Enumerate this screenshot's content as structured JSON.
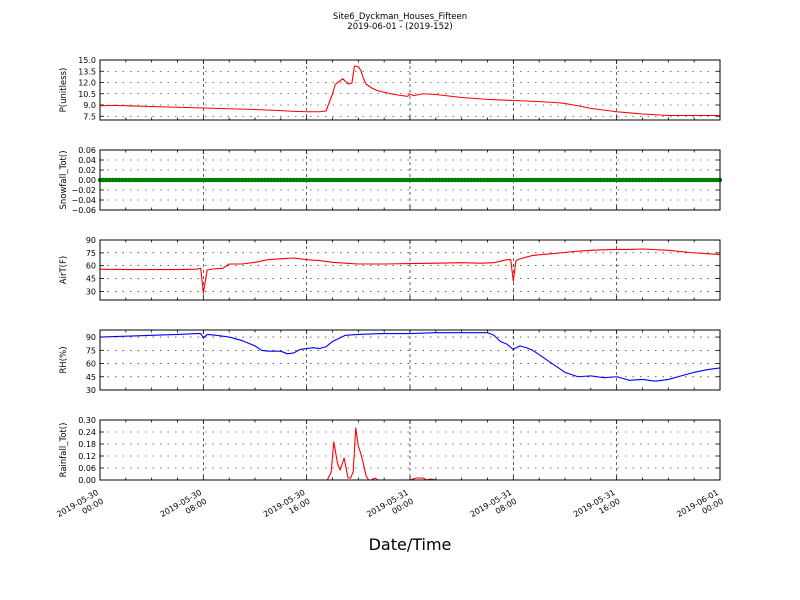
{
  "figure": {
    "title_line1": "Site6_Dyckman_Houses_Fifteen",
    "title_line2": "2019-06-01 - (2019-152)",
    "xlabel": "Date/Time",
    "x_tick_labels": [
      [
        "2019-05-30",
        "00:00"
      ],
      [
        "2019-05-30",
        "08:00"
      ],
      [
        "2019-05-30",
        "16:00"
      ],
      [
        "2019-05-31",
        "00:00"
      ],
      [
        "2019-05-31",
        "08:00"
      ],
      [
        "2019-05-31",
        "16:00"
      ],
      [
        "2019-06-01",
        "00:00"
      ]
    ]
  },
  "chart_data": [
    {
      "type": "line",
      "ylabel": "P(unitless)",
      "ylim": [
        7.0,
        15.0
      ],
      "yticks": [
        "7.5",
        "9.0",
        "10.5",
        "12.0",
        "13.5",
        "15.0"
      ],
      "ytick_values": [
        7.5,
        9.0,
        10.5,
        12.0,
        13.5,
        15.0
      ],
      "xlim_hours": [
        0,
        48
      ],
      "grid": true,
      "color": "#ff0000",
      "series": [
        {
          "x_hours": [
            0,
            1,
            2,
            4,
            6,
            8,
            10,
            12,
            14,
            15,
            16,
            17,
            17.5,
            18,
            18.2,
            18.4,
            18.8,
            19.2,
            19.5,
            19.7,
            20.0,
            20.2,
            20.4,
            20.6,
            21,
            21.5,
            22,
            22.5,
            23,
            23.8,
            24,
            24.3,
            25,
            26,
            28,
            30,
            32,
            34,
            35.5,
            36,
            37,
            38,
            40,
            42,
            44,
            46,
            48
          ],
          "y": [
            8.9,
            8.95,
            8.9,
            8.8,
            8.7,
            8.6,
            8.5,
            8.4,
            8.25,
            8.15,
            8.1,
            8.1,
            8.2,
            10.5,
            11.7,
            12.0,
            12.5,
            11.8,
            11.9,
            14.2,
            14.1,
            13.6,
            12.5,
            11.8,
            11.3,
            10.9,
            10.7,
            10.5,
            10.35,
            10.15,
            10.45,
            10.25,
            10.5,
            10.4,
            10.0,
            9.75,
            9.6,
            9.45,
            9.3,
            9.2,
            8.9,
            8.55,
            8.1,
            7.8,
            7.6,
            7.6,
            7.6
          ]
        }
      ]
    },
    {
      "type": "line",
      "ylabel": "Snowfall_Tot()",
      "ylim": [
        -0.06,
        0.06
      ],
      "yticks": [
        "−0.06",
        "−0.04",
        "−0.02",
        "0.00",
        "0.02",
        "0.04",
        "0.06"
      ],
      "ytick_values": [
        -0.06,
        -0.04,
        -0.02,
        0.0,
        0.02,
        0.04,
        0.06
      ],
      "xlim_hours": [
        0,
        48
      ],
      "grid": true,
      "color": "#008000",
      "marker": "dot",
      "series": [
        {
          "x_hours": [
            0,
            48
          ],
          "y": [
            0.0,
            0.0
          ]
        }
      ]
    },
    {
      "type": "line",
      "ylabel": "AirT(F)",
      "ylim": [
        20,
        90
      ],
      "yticks": [
        "30",
        "45",
        "60",
        "75",
        "90"
      ],
      "ytick_values": [
        30,
        45,
        60,
        75,
        90
      ],
      "xlim_hours": [
        0,
        48
      ],
      "grid": true,
      "color": "#ff0000",
      "series": [
        {
          "x_hours": [
            0,
            2,
            4,
            6,
            7.5,
            7.8,
            8.0,
            8.3,
            8.7,
            9,
            9.5,
            10,
            11,
            12,
            13,
            14,
            15,
            16,
            17,
            18,
            19,
            20,
            22,
            24,
            26,
            28,
            29.5,
            30.5,
            31.5,
            31.8,
            32.0,
            32.2,
            32.5,
            33.5,
            35,
            37,
            38,
            39,
            40,
            41,
            42,
            44,
            46,
            48
          ],
          "y": [
            56,
            55.5,
            55.5,
            55.5,
            56,
            57,
            28,
            55,
            56,
            56.5,
            57,
            62,
            62,
            64,
            67,
            68,
            69,
            67,
            66,
            64,
            63,
            62,
            62,
            62.5,
            63,
            63.5,
            63,
            63.5,
            67,
            67,
            42,
            66,
            68,
            72,
            74,
            77,
            78,
            78.5,
            79,
            79,
            79.5,
            78,
            75,
            73
          ]
        }
      ]
    },
    {
      "type": "line",
      "ylabel": "RH(%)",
      "ylim": [
        30,
        98
      ],
      "yticks": [
        "30",
        "45",
        "60",
        "75",
        "90"
      ],
      "ytick_values": [
        30,
        45,
        60,
        75,
        90
      ],
      "xlim_hours": [
        0,
        48
      ],
      "grid": true,
      "color": "#0000ff",
      "series": [
        {
          "x_hours": [
            0,
            2,
            4,
            6,
            7.5,
            7.8,
            8.0,
            8.3,
            9,
            10,
            11,
            12,
            12.5,
            13,
            14,
            14.5,
            15,
            15.5,
            16,
            16.5,
            17,
            17.5,
            18,
            19,
            20,
            22,
            24,
            26,
            28,
            30,
            30.5,
            31,
            31.5,
            32,
            32.5,
            33,
            33.5,
            34,
            35,
            36,
            37,
            38,
            39,
            40,
            40.5,
            41,
            42,
            43,
            44,
            45,
            46,
            47,
            48
          ],
          "y": [
            90,
            91,
            92,
            93,
            94,
            94,
            89,
            93,
            92,
            90,
            86,
            80,
            75,
            74,
            74,
            71,
            72,
            76,
            77,
            78,
            77,
            79,
            85,
            92,
            93,
            94,
            94,
            95,
            95,
            95,
            92,
            85,
            82,
            76,
            80,
            78,
            75,
            70,
            60,
            50,
            45,
            46,
            44,
            45,
            43,
            41,
            42,
            40,
            42,
            46,
            50,
            53,
            55
          ]
        }
      ]
    },
    {
      "type": "line",
      "ylabel": "Rainfall_Tot()",
      "ylim": [
        0.0,
        0.3
      ],
      "yticks": [
        "0.00",
        "0.06",
        "0.12",
        "0.18",
        "0.24",
        "0.30"
      ],
      "ytick_values": [
        0.0,
        0.06,
        0.12,
        0.18,
        0.24,
        0.3
      ],
      "xlim_hours": [
        0,
        48
      ],
      "grid": true,
      "color": "#ff0000",
      "series": [
        {
          "x_hours": [
            0,
            17.6,
            17.9,
            18.1,
            18.4,
            18.6,
            18.9,
            19.2,
            19.4,
            19.6,
            19.8,
            20.0,
            20.2,
            20.4,
            20.6,
            20.8,
            21.0,
            21.3,
            21.5,
            24,
            24.5,
            25,
            25.3,
            25.6,
            26,
            48
          ],
          "y": [
            0,
            0,
            0.04,
            0.19,
            0.08,
            0.05,
            0.11,
            0.01,
            0.01,
            0.04,
            0.26,
            0.17,
            0.13,
            0.08,
            0.02,
            0.0,
            0.0,
            0.01,
            0.0,
            0.0,
            0.01,
            0.01,
            0.0,
            0.005,
            0.0,
            0.0
          ]
        }
      ]
    }
  ]
}
